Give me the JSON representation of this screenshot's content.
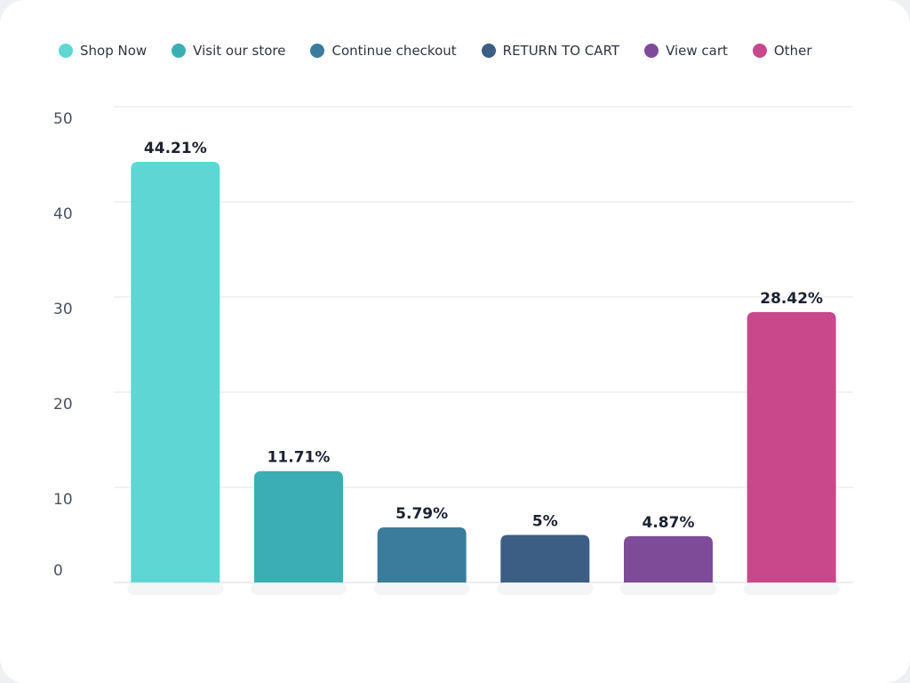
{
  "chart_data": {
    "type": "bar",
    "categories": [
      "Shop Now",
      "Visit our store",
      "Continue checkout",
      "RETURN TO CART",
      "View cart",
      "Other"
    ],
    "values": [
      44.21,
      11.71,
      5.79,
      5,
      4.87,
      28.42
    ],
    "data_labels": [
      "44.21%",
      "11.71%",
      "5.79%",
      "5%",
      "4.87%",
      "28.42%"
    ],
    "colors": [
      "#5dd6d4",
      "#3aafb3",
      "#3b7c9c",
      "#3c5d84",
      "#7e4b98",
      "#c7488b"
    ],
    "title": "",
    "xlabel": "",
    "ylabel": "",
    "ylim": [
      0,
      50
    ],
    "yticks": [
      "0",
      "10",
      "20",
      "30",
      "40",
      "50"
    ],
    "grid": true,
    "legend_position": "top"
  }
}
